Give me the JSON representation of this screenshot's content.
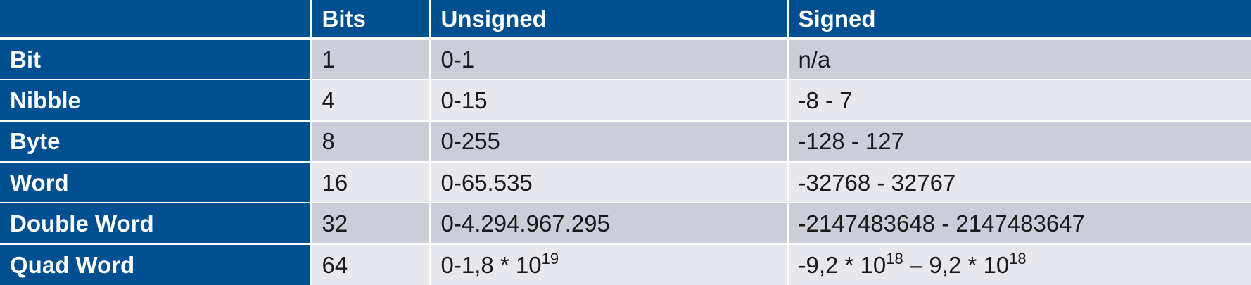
{
  "table": {
    "headers": [
      "",
      "Bits",
      "Unsigned",
      "Signed"
    ],
    "rows": [
      {
        "name": "Bit",
        "bits": "1",
        "unsigned": "0-1",
        "signed": "n/a"
      },
      {
        "name": "Nibble",
        "bits": "4",
        "unsigned": "0-15",
        "signed": "-8 - 7"
      },
      {
        "name": "Byte",
        "bits": "8",
        "unsigned": "0-255",
        "signed": "-128 - 127"
      },
      {
        "name": "Word",
        "bits": "16",
        "unsigned": "0-65.535",
        "signed": "-32768 - 32767"
      },
      {
        "name": "Double Word",
        "bits": "32",
        "unsigned": "0-4.294.967.295",
        "signed": "-2147483648 - 2147483647"
      },
      {
        "name": "Quad Word",
        "bits": "64",
        "unsigned_parts": {
          "mantissa": "0-1,8 * 10",
          "exp": "19"
        },
        "signed_parts": {
          "a": "-9,2 * 10",
          "a_exp": "18",
          "sep": " – 9,2 * 10",
          "b_exp": "18"
        }
      }
    ]
  },
  "colors": {
    "header_bg": "#004f90",
    "header_text": "#ffffff",
    "row_band_dark": "#cbced9",
    "row_band_light": "#e7e8ed",
    "cell_text": "#1a1a1a"
  }
}
